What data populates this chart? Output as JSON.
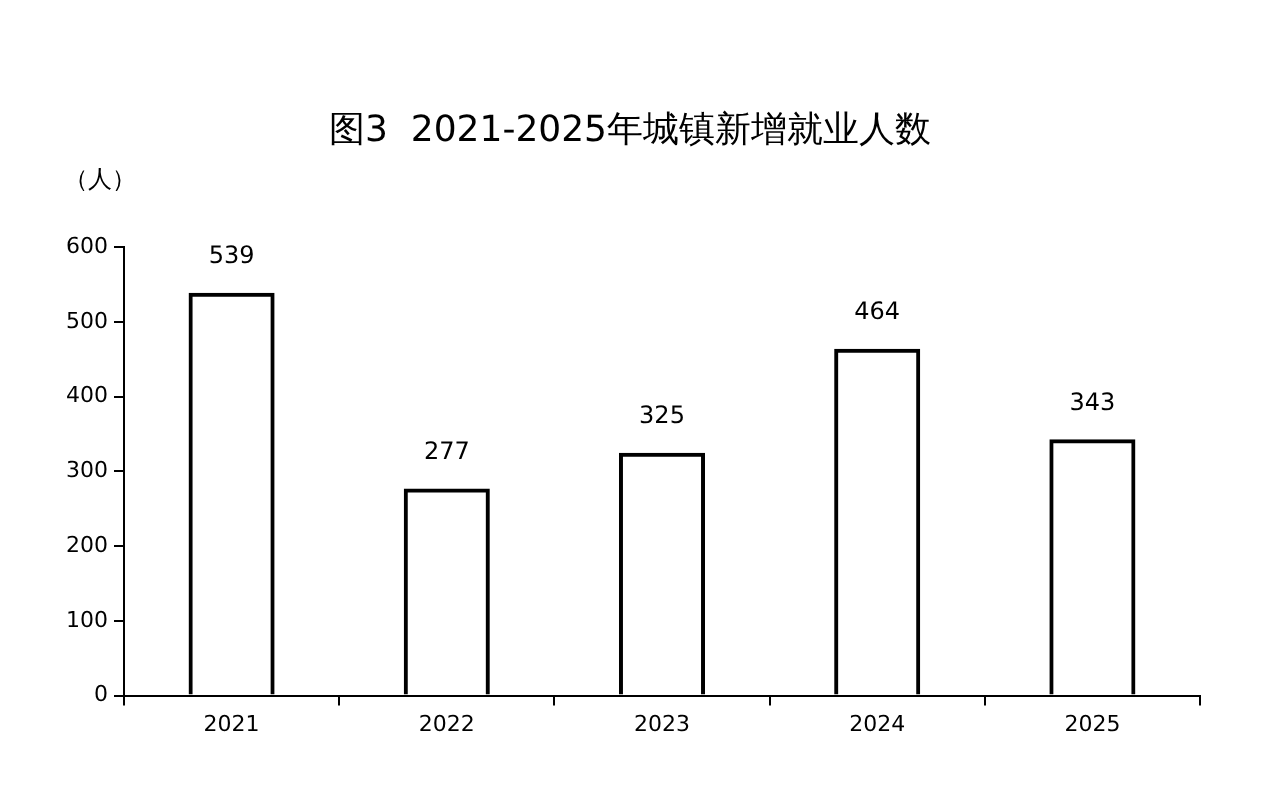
{
  "chart_data": {
    "type": "bar",
    "title": "图3  2021-2025年城镇新增就业人数",
    "ylabel": "（人）",
    "categories": [
      "2021",
      "2022",
      "2023",
      "2024",
      "2025"
    ],
    "values": [
      539,
      277,
      325,
      464,
      343
    ],
    "color": "#000000",
    "ylim": [
      0,
      600
    ],
    "yticks": [
      0,
      100,
      200,
      300,
      400,
      500,
      600
    ],
    "grid": false,
    "legend": false,
    "data_labels": true
  }
}
